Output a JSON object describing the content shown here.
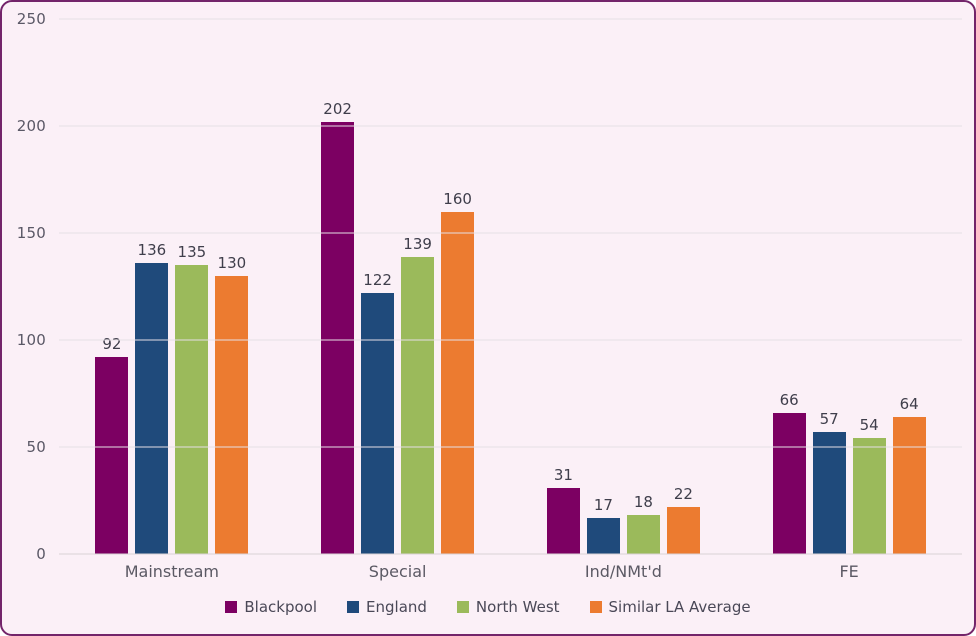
{
  "chart_data": {
    "type": "bar",
    "categories": [
      "Mainstream",
      "Special",
      "Ind/NMt'd",
      "FE"
    ],
    "series": [
      {
        "name": "Blackpool",
        "color": "#7C0062",
        "values": [
          92,
          202,
          31,
          66
        ]
      },
      {
        "name": "England",
        "color": "#1F4A7B",
        "values": [
          136,
          122,
          17,
          57
        ]
      },
      {
        "name": "North West",
        "color": "#9BBA5B",
        "values": [
          135,
          139,
          18,
          54
        ]
      },
      {
        "name": "Similar LA Average",
        "color": "#EC7B30",
        "values": [
          130,
          160,
          22,
          64
        ]
      }
    ],
    "title": "",
    "xlabel": "",
    "ylabel": "",
    "ylim": [
      0,
      250
    ],
    "yticks": [
      0,
      50,
      100,
      150,
      200,
      250
    ],
    "grid": true,
    "legend_position": "bottom",
    "data_labels": true
  },
  "theme": {
    "background": "#FBF0F7",
    "panel_border": "#73246A",
    "grid_line": "#E6DFE4",
    "axis_text": "#5A5866",
    "value_text": "#3F3E4B"
  }
}
